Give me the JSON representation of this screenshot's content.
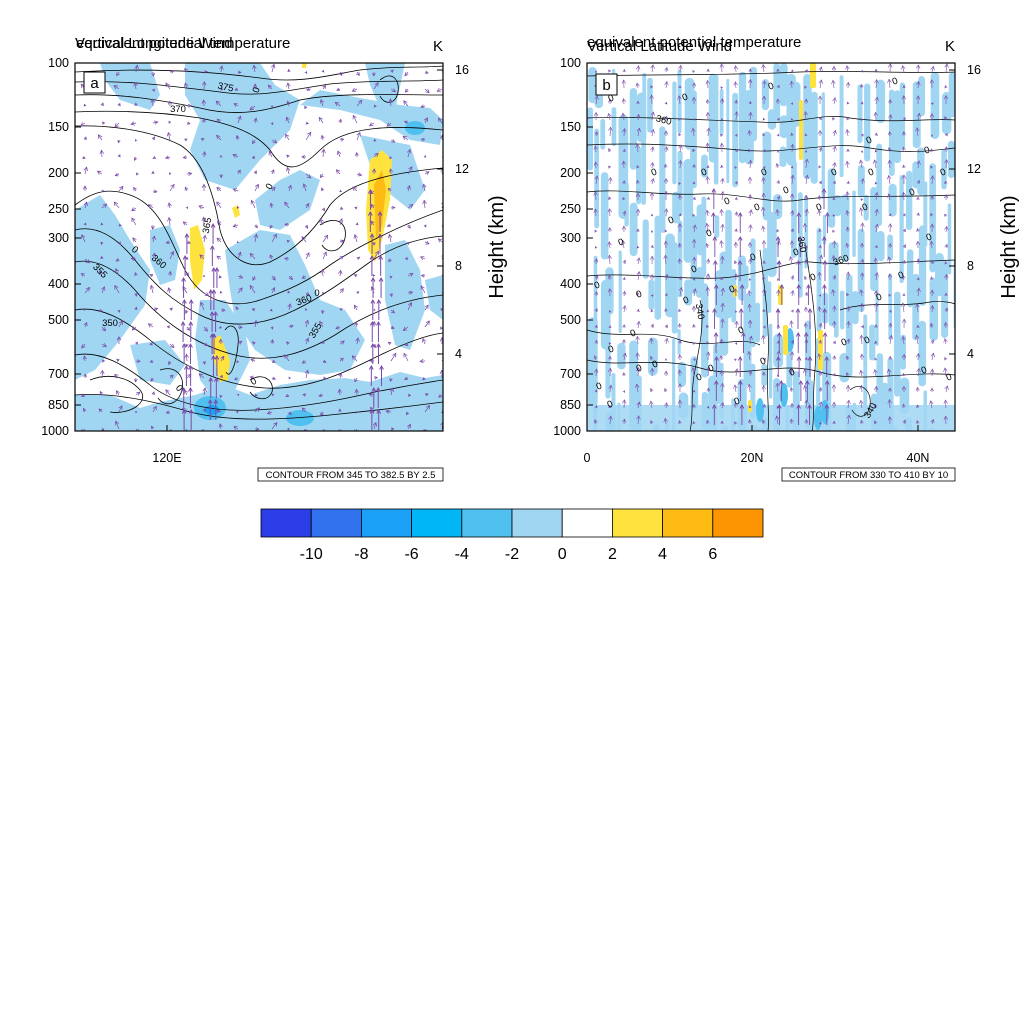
{
  "chart_data": [
    {
      "type": "heatmap",
      "panel_label": "a",
      "title_left": "Vertical Longitude Wind",
      "title_left_overlap": "equivalent potential temperature",
      "title_right": "K",
      "ylabel_right": "Height (km)",
      "x_ticks": [
        "120E"
      ],
      "y_ticks_left": [
        "100",
        "150",
        "200",
        "250",
        "300",
        "400",
        "500",
        "700",
        "850",
        "1000"
      ],
      "y_ticks_right": [
        "16",
        "12",
        "8",
        "4"
      ],
      "contour_info": "CONTOUR FROM 345 TO 382.5 BY 2.5",
      "contour_labels": [
        "375",
        "370",
        "365",
        "360",
        "355",
        "350",
        "0"
      ]
    },
    {
      "type": "heatmap",
      "panel_label": "b",
      "title_left": "Vertical Latitude Wind",
      "title_left_overlap": "equivalent potential temperature",
      "title_right": "K",
      "ylabel_right": "Height (km)",
      "x_ticks": [
        "0",
        "20N",
        "40N"
      ],
      "y_ticks_left": [
        "100",
        "150",
        "200",
        "250",
        "300",
        "400",
        "500",
        "700",
        "850",
        "1000"
      ],
      "y_ticks_right": [
        "16",
        "12",
        "8",
        "4"
      ],
      "contour_info": "CONTOUR FROM 330 TO 410 BY 10",
      "contour_labels": [
        "360",
        "340",
        "0"
      ]
    }
  ],
  "colorbar": {
    "colors": [
      "#2b3ee8",
      "#3173ef",
      "#1ba1f7",
      "#00b6f5",
      "#4fc0ef",
      "#a1d6f3",
      "#ffffff",
      "#fee33f",
      "#fdbb14",
      "#fd9502"
    ],
    "labels": [
      "-10",
      "-8",
      "-6",
      "-4",
      "-2",
      "0",
      "2",
      "4",
      "6"
    ]
  },
  "field_colors": {
    "light_blue": "#a1d6f3",
    "mid_blue": "#4fc0ef",
    "blue": "#1ba1f7",
    "yellow": "#fee33f",
    "orange": "#fdbb14",
    "vector": "#7a48a8",
    "contour": "#000000"
  }
}
